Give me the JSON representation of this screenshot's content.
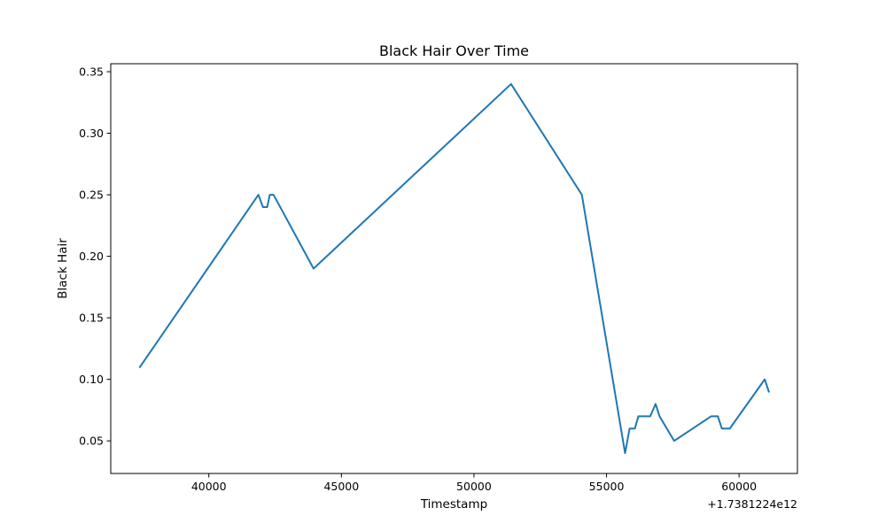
{
  "chart_data": {
    "type": "line",
    "title": "Black Hair Over Time",
    "xlabel": "Timestamp",
    "ylabel": "Black Hair",
    "x_offset_label": "+1.7381224e12",
    "xlim": [
      36300,
      62200
    ],
    "ylim": [
      0.0235,
      0.3565
    ],
    "x_ticks": [
      40000,
      45000,
      50000,
      55000,
      60000
    ],
    "x_tick_labels": [
      "40000",
      "45000",
      "50000",
      "55000",
      "60000"
    ],
    "y_ticks": [
      0.05,
      0.1,
      0.15,
      0.2,
      0.25,
      0.3,
      0.35
    ],
    "y_tick_labels": [
      "0.05",
      "0.10",
      "0.15",
      "0.20",
      "0.25",
      "0.30",
      "0.35"
    ],
    "grid": false,
    "series": [
      {
        "color": "#1f77b4",
        "x": [
          37400,
          41870,
          42040,
          42200,
          42300,
          42440,
          43950,
          51400,
          54070,
          55700,
          55870,
          56070,
          56200,
          56650,
          56850,
          57000,
          57550,
          58950,
          59200,
          59350,
          59650,
          60970,
          61120
        ],
        "y": [
          0.11,
          0.25,
          0.24,
          0.24,
          0.25,
          0.25,
          0.19,
          0.34,
          0.25,
          0.04,
          0.06,
          0.06,
          0.07,
          0.07,
          0.08,
          0.07,
          0.05,
          0.07,
          0.07,
          0.06,
          0.06,
          0.1,
          0.09
        ]
      }
    ]
  }
}
